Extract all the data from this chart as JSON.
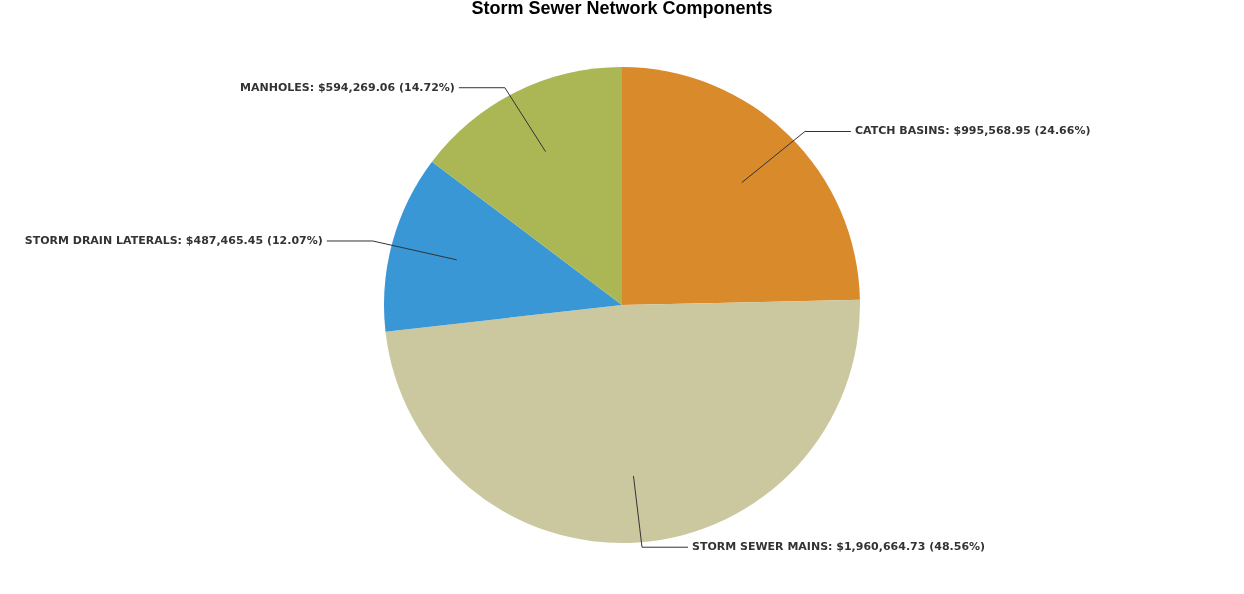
{
  "chart_data": {
    "type": "pie",
    "title": "Storm Sewer Network Components",
    "categories": [
      "CATCH BASINS",
      "STORM SEWER MAINS",
      "STORM DRAIN LATERALS",
      "MANHOLES"
    ],
    "values": [
      995568.95,
      1960664.73,
      487465.45,
      594269.06
    ],
    "value_labels": [
      "$995,568.95 (24.66%)",
      "$1,960,664.73 (48.56%)",
      "$487,465.45 (12.07%)",
      "$594,269.06 (14.72%)"
    ],
    "colors": [
      "#d98a2b",
      "#cbc89f",
      "#3a97d6",
      "#abb655"
    ],
    "legend": false
  }
}
